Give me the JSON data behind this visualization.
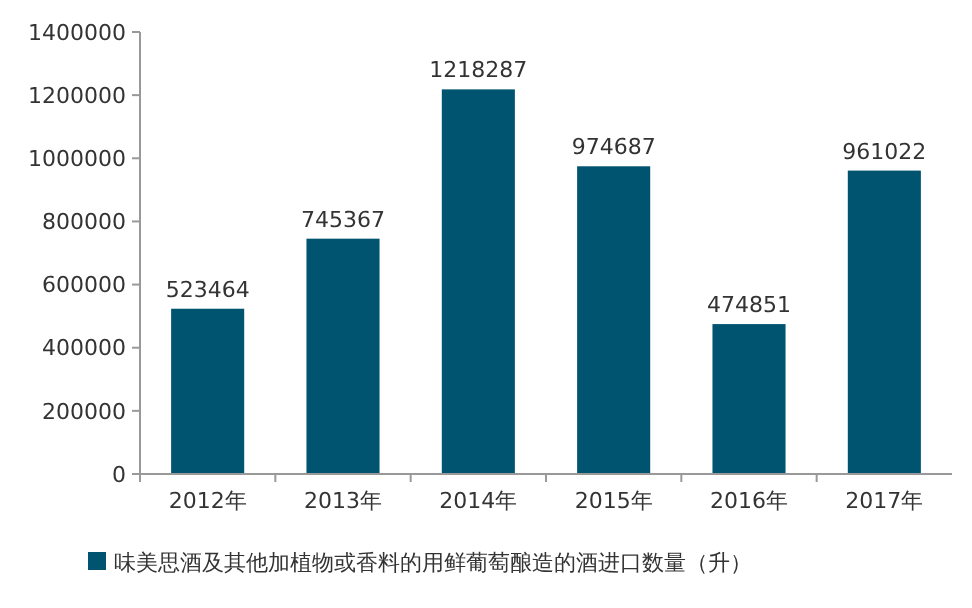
{
  "chart_data": {
    "type": "bar",
    "categories": [
      "2012年",
      "2013年",
      "2014年",
      "2015年",
      "2016年",
      "2017年"
    ],
    "series": [
      {
        "name": "味美思酒及其他加植物或香料的用鲜葡萄酿造的酒进口数量（升）",
        "color": "#005470",
        "values": [
          523464,
          745367,
          1218287,
          974687,
          474851,
          961022
        ]
      }
    ],
    "ylim": [
      0,
      1400000
    ],
    "yticks": [
      0,
      200000,
      400000,
      600000,
      800000,
      1000000,
      1200000,
      1400000
    ],
    "data_labels": true,
    "legend": "bottom",
    "grid": false
  }
}
